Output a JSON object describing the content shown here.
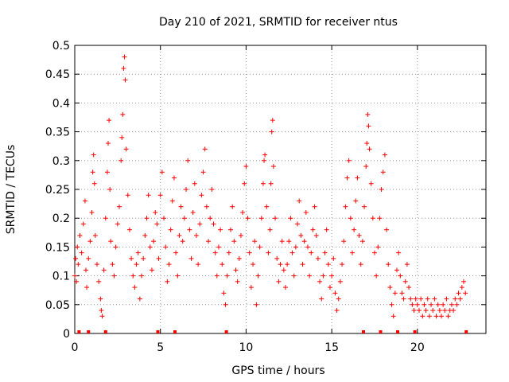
{
  "chart_data": {
    "type": "scatter",
    "title": "Day 210 of 2021, SRMTID for receiver ntus",
    "xlabel": "GPS time / hours",
    "ylabel": "SRMTID / TECUs",
    "xlim": [
      0,
      24
    ],
    "ylim": [
      0,
      0.5
    ],
    "xticks": [
      0,
      5,
      10,
      15,
      20
    ],
    "yticks": [
      0,
      0.05,
      0.1,
      0.15,
      0.2,
      0.25,
      0.3,
      0.35,
      0.4,
      0.45,
      0.5
    ],
    "grid": true,
    "marker": "+",
    "series": [
      {
        "name": "SRMTID",
        "color": "#ff0000",
        "points": [
          [
            0.0,
            0.1
          ],
          [
            0.05,
            0.13
          ],
          [
            0.1,
            0.09
          ],
          [
            0.15,
            0.15
          ],
          [
            0.2,
            0.12
          ],
          [
            0.3,
            0.17
          ],
          [
            0.4,
            0.14
          ],
          [
            0.5,
            0.19
          ],
          [
            0.6,
            0.23
          ],
          [
            0.65,
            0.11
          ],
          [
            0.7,
            0.08
          ],
          [
            0.8,
            0.13
          ],
          [
            0.9,
            0.16
          ],
          [
            1.0,
            0.21
          ],
          [
            1.05,
            0.28
          ],
          [
            1.1,
            0.31
          ],
          [
            1.15,
            0.26
          ],
          [
            1.2,
            0.17
          ],
          [
            1.3,
            0.12
          ],
          [
            1.4,
            0.09
          ],
          [
            1.5,
            0.06
          ],
          [
            1.55,
            0.04
          ],
          [
            1.6,
            0.03
          ],
          [
            1.7,
            0.11
          ],
          [
            1.8,
            0.2
          ],
          [
            1.9,
            0.28
          ],
          [
            1.95,
            0.33
          ],
          [
            2.0,
            0.37
          ],
          [
            2.05,
            0.25
          ],
          [
            2.1,
            0.16
          ],
          [
            2.2,
            0.12
          ],
          [
            2.3,
            0.1
          ],
          [
            2.4,
            0.15
          ],
          [
            2.5,
            0.19
          ],
          [
            2.6,
            0.22
          ],
          [
            2.7,
            0.3
          ],
          [
            2.75,
            0.34
          ],
          [
            2.8,
            0.38
          ],
          [
            2.85,
            0.46
          ],
          [
            2.9,
            0.48
          ],
          [
            2.95,
            0.44
          ],
          [
            3.0,
            0.32
          ],
          [
            3.1,
            0.24
          ],
          [
            3.2,
            0.18
          ],
          [
            3.3,
            0.13
          ],
          [
            3.4,
            0.1
          ],
          [
            3.5,
            0.08
          ],
          [
            3.6,
            0.12
          ],
          [
            3.7,
            0.14
          ],
          [
            3.8,
            0.06
          ],
          [
            3.9,
            0.1
          ],
          [
            4.0,
            0.13
          ],
          [
            4.1,
            0.17
          ],
          [
            4.2,
            0.2
          ],
          [
            4.3,
            0.24
          ],
          [
            4.4,
            0.15
          ],
          [
            4.5,
            0.11
          ],
          [
            4.6,
            0.16
          ],
          [
            4.7,
            0.21
          ],
          [
            4.8,
            0.19
          ],
          [
            4.9,
            0.13
          ],
          [
            5.0,
            0.24
          ],
          [
            5.1,
            0.28
          ],
          [
            5.2,
            0.2
          ],
          [
            5.3,
            0.15
          ],
          [
            5.4,
            0.09
          ],
          [
            5.5,
            0.12
          ],
          [
            5.6,
            0.18
          ],
          [
            5.7,
            0.23
          ],
          [
            5.8,
            0.27
          ],
          [
            5.9,
            0.14
          ],
          [
            6.0,
            0.1
          ],
          [
            6.1,
            0.17
          ],
          [
            6.2,
            0.22
          ],
          [
            6.3,
            0.16
          ],
          [
            6.4,
            0.2
          ],
          [
            6.5,
            0.25
          ],
          [
            6.6,
            0.3
          ],
          [
            6.7,
            0.18
          ],
          [
            6.8,
            0.13
          ],
          [
            6.9,
            0.21
          ],
          [
            7.0,
            0.26
          ],
          [
            7.1,
            0.17
          ],
          [
            7.2,
            0.12
          ],
          [
            7.3,
            0.19
          ],
          [
            7.4,
            0.24
          ],
          [
            7.5,
            0.28
          ],
          [
            7.6,
            0.32
          ],
          [
            7.7,
            0.22
          ],
          [
            7.8,
            0.16
          ],
          [
            7.9,
            0.2
          ],
          [
            8.0,
            0.25
          ],
          [
            8.1,
            0.19
          ],
          [
            8.2,
            0.14
          ],
          [
            8.3,
            0.1
          ],
          [
            8.4,
            0.15
          ],
          [
            8.5,
            0.18
          ],
          [
            8.6,
            0.12
          ],
          [
            8.7,
            0.07
          ],
          [
            8.8,
            0.05
          ],
          [
            8.9,
            0.1
          ],
          [
            9.0,
            0.14
          ],
          [
            9.1,
            0.18
          ],
          [
            9.2,
            0.22
          ],
          [
            9.3,
            0.16
          ],
          [
            9.4,
            0.11
          ],
          [
            9.5,
            0.09
          ],
          [
            9.6,
            0.13
          ],
          [
            9.7,
            0.17
          ],
          [
            9.8,
            0.21
          ],
          [
            9.9,
            0.26
          ],
          [
            10.0,
            0.29
          ],
          [
            10.1,
            0.2
          ],
          [
            10.2,
            0.14
          ],
          [
            10.3,
            0.08
          ],
          [
            10.4,
            0.12
          ],
          [
            10.5,
            0.16
          ],
          [
            10.6,
            0.05
          ],
          [
            10.7,
            0.1
          ],
          [
            10.8,
            0.15
          ],
          [
            10.9,
            0.2
          ],
          [
            11.0,
            0.26
          ],
          [
            11.05,
            0.3
          ],
          [
            11.1,
            0.31
          ],
          [
            11.2,
            0.22
          ],
          [
            11.3,
            0.14
          ],
          [
            11.4,
            0.18
          ],
          [
            11.45,
            0.26
          ],
          [
            11.5,
            0.35
          ],
          [
            11.55,
            0.37
          ],
          [
            11.6,
            0.29
          ],
          [
            11.7,
            0.2
          ],
          [
            11.8,
            0.13
          ],
          [
            11.9,
            0.09
          ],
          [
            12.0,
            0.12
          ],
          [
            12.1,
            0.16
          ],
          [
            12.2,
            0.11
          ],
          [
            12.3,
            0.08
          ],
          [
            12.4,
            0.12
          ],
          [
            12.5,
            0.16
          ],
          [
            12.6,
            0.2
          ],
          [
            12.7,
            0.14
          ],
          [
            12.8,
            0.1
          ],
          [
            12.9,
            0.15
          ],
          [
            13.0,
            0.19
          ],
          [
            13.1,
            0.23
          ],
          [
            13.2,
            0.17
          ],
          [
            13.3,
            0.12
          ],
          [
            13.4,
            0.16
          ],
          [
            13.5,
            0.21
          ],
          [
            13.6,
            0.15
          ],
          [
            13.7,
            0.1
          ],
          [
            13.8,
            0.14
          ],
          [
            13.9,
            0.18
          ],
          [
            14.0,
            0.22
          ],
          [
            14.1,
            0.17
          ],
          [
            14.2,
            0.13
          ],
          [
            14.3,
            0.09
          ],
          [
            14.4,
            0.06
          ],
          [
            14.5,
            0.1
          ],
          [
            14.6,
            0.14
          ],
          [
            14.7,
            0.18
          ],
          [
            14.8,
            0.12
          ],
          [
            14.9,
            0.08
          ],
          [
            15.0,
            0.1
          ],
          [
            15.1,
            0.13
          ],
          [
            15.2,
            0.07
          ],
          [
            15.3,
            0.04
          ],
          [
            15.4,
            0.06
          ],
          [
            15.5,
            0.09
          ],
          [
            15.6,
            0.12
          ],
          [
            15.7,
            0.16
          ],
          [
            15.8,
            0.22
          ],
          [
            15.9,
            0.27
          ],
          [
            16.0,
            0.3
          ],
          [
            16.1,
            0.2
          ],
          [
            16.2,
            0.14
          ],
          [
            16.3,
            0.18
          ],
          [
            16.4,
            0.23
          ],
          [
            16.5,
            0.27
          ],
          [
            16.6,
            0.17
          ],
          [
            16.7,
            0.12
          ],
          [
            16.8,
            0.16
          ],
          [
            16.9,
            0.22
          ],
          [
            17.0,
            0.29
          ],
          [
            17.05,
            0.33
          ],
          [
            17.1,
            0.38
          ],
          [
            17.15,
            0.36
          ],
          [
            17.2,
            0.32
          ],
          [
            17.3,
            0.26
          ],
          [
            17.4,
            0.2
          ],
          [
            17.5,
            0.14
          ],
          [
            17.6,
            0.1
          ],
          [
            17.7,
            0.15
          ],
          [
            17.8,
            0.2
          ],
          [
            17.9,
            0.25
          ],
          [
            18.0,
            0.28
          ],
          [
            18.1,
            0.31
          ],
          [
            18.2,
            0.18
          ],
          [
            18.3,
            0.12
          ],
          [
            18.4,
            0.08
          ],
          [
            18.5,
            0.05
          ],
          [
            18.6,
            0.03
          ],
          [
            18.7,
            0.07
          ],
          [
            18.8,
            0.11
          ],
          [
            18.9,
            0.14
          ],
          [
            19.0,
            0.1
          ],
          [
            19.1,
            0.07
          ],
          [
            19.2,
            0.06
          ],
          [
            19.3,
            0.09
          ],
          [
            19.4,
            0.12
          ],
          [
            19.5,
            0.08
          ],
          [
            19.6,
            0.06
          ],
          [
            19.7,
            0.05
          ],
          [
            19.8,
            0.04
          ],
          [
            19.9,
            0.06
          ],
          [
            20.0,
            0.05
          ],
          [
            20.1,
            0.04
          ],
          [
            20.2,
            0.06
          ],
          [
            20.3,
            0.03
          ],
          [
            20.4,
            0.05
          ],
          [
            20.5,
            0.04
          ],
          [
            20.6,
            0.06
          ],
          [
            20.7,
            0.03
          ],
          [
            20.8,
            0.05
          ],
          [
            20.9,
            0.04
          ],
          [
            21.0,
            0.06
          ],
          [
            21.1,
            0.03
          ],
          [
            21.2,
            0.05
          ],
          [
            21.3,
            0.04
          ],
          [
            21.4,
            0.03
          ],
          [
            21.5,
            0.05
          ],
          [
            21.6,
            0.04
          ],
          [
            21.7,
            0.06
          ],
          [
            21.8,
            0.03
          ],
          [
            21.9,
            0.04
          ],
          [
            22.0,
            0.05
          ],
          [
            22.1,
            0.04
          ],
          [
            22.2,
            0.06
          ],
          [
            22.3,
            0.05
          ],
          [
            22.4,
            0.07
          ],
          [
            22.5,
            0.06
          ],
          [
            22.6,
            0.08
          ],
          [
            22.7,
            0.09
          ],
          [
            22.8,
            0.07
          ]
        ]
      }
    ],
    "marker_points_x": [
      0.25,
      0.8,
      1.8,
      4.85,
      5.85,
      8.85,
      16.85,
      17.85,
      18.85,
      19.85,
      22.85
    ]
  }
}
